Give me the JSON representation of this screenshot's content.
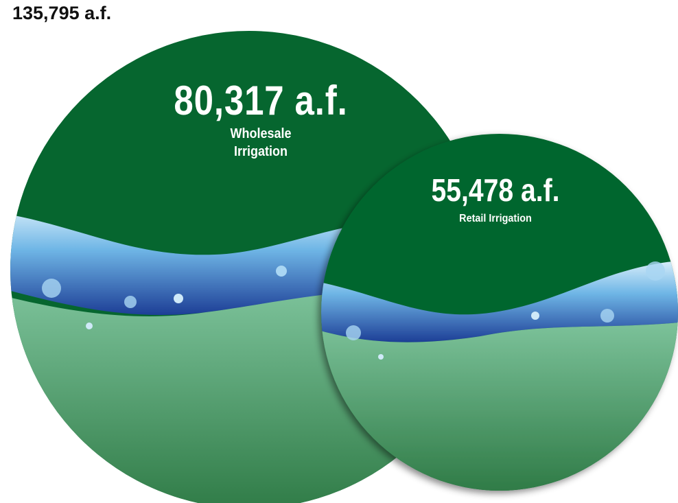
{
  "header": {
    "title": "135,795 a.f."
  },
  "circles": [
    {
      "amount": "80,317 a.f.",
      "label": "Wholesale Irrigation"
    },
    {
      "amount": "55,478 a.f.",
      "label": "Retail Irrigation"
    }
  ]
}
